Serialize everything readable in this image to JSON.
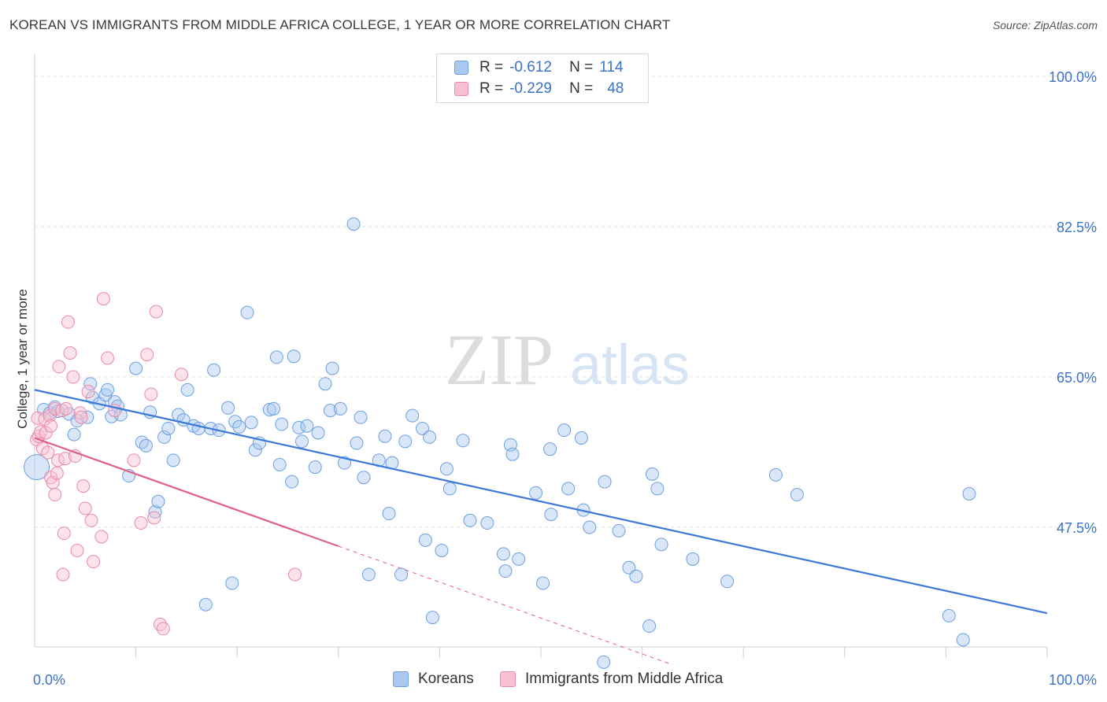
{
  "title": "KOREAN VS IMMIGRANTS FROM MIDDLE AFRICA COLLEGE, 1 YEAR OR MORE CORRELATION CHART",
  "source": "Source: ZipAtlas.com",
  "watermark": {
    "zip": "ZIP",
    "atlas": "atlas"
  },
  "legend": {
    "r_label": "R =",
    "n_label": "N =",
    "rows": [
      {
        "r": "-0.612",
        "n": "114",
        "fill": "#a9c8f0",
        "stroke": "#6c9fe0"
      },
      {
        "r": "-0.229",
        "n": "48",
        "fill": "#f8c0d0",
        "stroke": "#e88aa8"
      }
    ]
  },
  "bottom_legend": [
    {
      "label": "Koreans",
      "fill": "#a9c8f0",
      "stroke": "#6c9fe0"
    },
    {
      "label": "Immigrants from Middle Africa",
      "fill": "#f8c0d0",
      "stroke": "#e88aa8"
    }
  ],
  "chart_data": {
    "type": "scatter",
    "title": "KOREAN VS IMMIGRANTS FROM MIDDLE AFRICA COLLEGE, 1 YEAR OR MORE CORRELATION CHART",
    "xlabel": "",
    "ylabel": "College, 1 year or more",
    "xlim": [
      0,
      100
    ],
    "ylim": [
      33,
      102
    ],
    "x_tick_labels": [
      {
        "value": 0,
        "label": "0.0%"
      },
      {
        "value": 100,
        "label": "100.0%"
      }
    ],
    "x_minor_ticks": [
      10,
      20,
      30,
      40,
      50,
      60,
      70,
      80,
      90
    ],
    "y_ticks": [
      {
        "value": 100,
        "label": "100.0%"
      },
      {
        "value": 82.5,
        "label": "82.5%"
      },
      {
        "value": 65,
        "label": "65.0%"
      },
      {
        "value": 47.5,
        "label": "47.5%"
      }
    ],
    "grid": true,
    "legend_position": "top-center",
    "series": [
      {
        "name": "Koreans",
        "color": "#6c9fe0",
        "fill": "#a9c8f0",
        "trend": {
          "x": [
            0,
            100
          ],
          "y": [
            63.5,
            37.5
          ],
          "color": "#3b78d8"
        },
        "points": [
          [
            0.2,
            54.5
          ],
          [
            0.9,
            61.2
          ],
          [
            1.5,
            60.8
          ],
          [
            2.0,
            61.5
          ],
          [
            2.3,
            61.0
          ],
          [
            3.4,
            60.7
          ],
          [
            3.9,
            58.3
          ],
          [
            4.2,
            59.9
          ],
          [
            5.2,
            60.3
          ],
          [
            5.5,
            64.2
          ],
          [
            5.7,
            62.6
          ],
          [
            6.4,
            61.9
          ],
          [
            7.0,
            62.9
          ],
          [
            7.2,
            63.5
          ],
          [
            7.6,
            60.4
          ],
          [
            7.9,
            62.1
          ],
          [
            8.2,
            61.6
          ],
          [
            8.5,
            60.6
          ],
          [
            9.3,
            53.5
          ],
          [
            10.0,
            66.0
          ],
          [
            10.6,
            57.4
          ],
          [
            11.0,
            57.0
          ],
          [
            11.4,
            60.9
          ],
          [
            11.9,
            49.3
          ],
          [
            12.2,
            50.5
          ],
          [
            12.8,
            58.0
          ],
          [
            13.2,
            59.0
          ],
          [
            13.7,
            55.3
          ],
          [
            14.2,
            60.6
          ],
          [
            14.7,
            60.0
          ],
          [
            15.1,
            63.5
          ],
          [
            15.7,
            59.3
          ],
          [
            16.2,
            59.0
          ],
          [
            16.9,
            38.5
          ],
          [
            17.4,
            59.0
          ],
          [
            17.7,
            65.8
          ],
          [
            18.2,
            58.8
          ],
          [
            19.1,
            61.4
          ],
          [
            19.5,
            41.0
          ],
          [
            19.8,
            59.8
          ],
          [
            20.2,
            59.2
          ],
          [
            21.0,
            72.5
          ],
          [
            21.4,
            59.7
          ],
          [
            21.8,
            56.5
          ],
          [
            22.2,
            57.3
          ],
          [
            23.2,
            61.2
          ],
          [
            23.6,
            61.3
          ],
          [
            23.9,
            67.3
          ],
          [
            24.2,
            54.8
          ],
          [
            24.4,
            59.5
          ],
          [
            25.4,
            52.8
          ],
          [
            25.6,
            67.4
          ],
          [
            26.1,
            59.1
          ],
          [
            26.4,
            57.5
          ],
          [
            26.9,
            59.3
          ],
          [
            27.7,
            54.5
          ],
          [
            28.0,
            58.5
          ],
          [
            28.7,
            64.2
          ],
          [
            29.2,
            61.1
          ],
          [
            29.4,
            66.0
          ],
          [
            30.2,
            61.3
          ],
          [
            30.6,
            55.0
          ],
          [
            31.5,
            82.8
          ],
          [
            31.8,
            57.3
          ],
          [
            32.2,
            60.3
          ],
          [
            32.5,
            53.3
          ],
          [
            33.0,
            42.0
          ],
          [
            34.0,
            55.3
          ],
          [
            34.6,
            58.1
          ],
          [
            35.0,
            49.1
          ],
          [
            35.3,
            55.0
          ],
          [
            36.2,
            42.0
          ],
          [
            36.6,
            57.5
          ],
          [
            37.3,
            60.5
          ],
          [
            38.3,
            59.0
          ],
          [
            38.6,
            46.0
          ],
          [
            39.0,
            58.0
          ],
          [
            39.3,
            37.0
          ],
          [
            40.2,
            44.8
          ],
          [
            40.7,
            54.3
          ],
          [
            41.0,
            52.0
          ],
          [
            42.3,
            57.6
          ],
          [
            43.0,
            48.3
          ],
          [
            44.7,
            48.0
          ],
          [
            46.3,
            44.4
          ],
          [
            46.5,
            42.4
          ],
          [
            47.0,
            57.1
          ],
          [
            47.2,
            56.0
          ],
          [
            47.8,
            43.8
          ],
          [
            49.5,
            51.5
          ],
          [
            50.2,
            41.0
          ],
          [
            50.9,
            56.6
          ],
          [
            51.0,
            49.0
          ],
          [
            52.3,
            58.8
          ],
          [
            52.7,
            52.0
          ],
          [
            54.0,
            57.9
          ],
          [
            54.2,
            49.5
          ],
          [
            54.8,
            47.5
          ],
          [
            56.2,
            31.8
          ],
          [
            56.3,
            52.8
          ],
          [
            57.7,
            47.1
          ],
          [
            58.7,
            42.8
          ],
          [
            59.4,
            41.8
          ],
          [
            60.7,
            36.0
          ],
          [
            61.0,
            53.7
          ],
          [
            61.5,
            52.0
          ],
          [
            61.9,
            45.5
          ],
          [
            65.0,
            43.8
          ],
          [
            68.4,
            41.2
          ],
          [
            73.2,
            53.6
          ],
          [
            75.3,
            51.3
          ],
          [
            90.3,
            37.2
          ],
          [
            91.7,
            34.4
          ],
          [
            92.3,
            51.4
          ]
        ]
      },
      {
        "name": "Immigrants from Middle Africa",
        "color": "#e88aa8",
        "fill": "#f8c0d0",
        "trend": {
          "x": [
            0,
            30
          ],
          "y": [
            57.9,
            45.3
          ],
          "color": "#e06088"
        },
        "trend_extension": {
          "x": [
            30,
            63
          ],
          "y": [
            45.3,
            31.5
          ]
        },
        "points": [
          [
            0.2,
            57.7
          ],
          [
            0.3,
            60.2
          ],
          [
            0.4,
            58.1
          ],
          [
            0.6,
            58.6
          ],
          [
            0.8,
            56.7
          ],
          [
            1.0,
            60.1
          ],
          [
            1.1,
            58.5
          ],
          [
            1.3,
            56.2
          ],
          [
            1.5,
            60.5
          ],
          [
            1.6,
            53.3
          ],
          [
            1.6,
            59.3
          ],
          [
            1.8,
            52.7
          ],
          [
            2.0,
            51.3
          ],
          [
            2.0,
            61.3
          ],
          [
            2.2,
            53.8
          ],
          [
            2.3,
            55.3
          ],
          [
            2.4,
            66.2
          ],
          [
            2.7,
            61.1
          ],
          [
            2.8,
            42.0
          ],
          [
            2.9,
            46.8
          ],
          [
            3.0,
            55.5
          ],
          [
            3.1,
            61.3
          ],
          [
            3.3,
            71.4
          ],
          [
            3.5,
            67.8
          ],
          [
            3.8,
            65.0
          ],
          [
            4.0,
            55.8
          ],
          [
            4.2,
            44.8
          ],
          [
            4.5,
            60.8
          ],
          [
            4.6,
            60.3
          ],
          [
            4.8,
            52.3
          ],
          [
            5.0,
            49.7
          ],
          [
            5.3,
            63.3
          ],
          [
            5.6,
            48.3
          ],
          [
            5.8,
            43.5
          ],
          [
            6.6,
            46.4
          ],
          [
            6.8,
            74.1
          ],
          [
            7.2,
            67.2
          ],
          [
            7.9,
            61.1
          ],
          [
            9.8,
            55.3
          ],
          [
            10.5,
            48.0
          ],
          [
            11.1,
            67.6
          ],
          [
            11.5,
            63.0
          ],
          [
            11.8,
            48.6
          ],
          [
            12.0,
            72.6
          ],
          [
            12.4,
            36.2
          ],
          [
            12.7,
            35.7
          ],
          [
            14.5,
            65.3
          ],
          [
            25.7,
            42.0
          ]
        ]
      }
    ]
  }
}
